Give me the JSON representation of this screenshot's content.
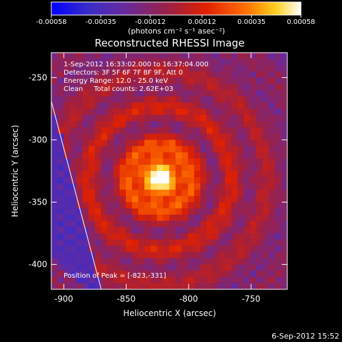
{
  "chart_data": {
    "type": "heatmap",
    "title": "Reconstructed RHESSI Image",
    "xlabel": "Heliocentric X (arcsec)",
    "ylabel": "Heliocentric Y (arcsec)",
    "xlim": [
      -910,
      -721
    ],
    "ylim": [
      -420,
      -230
    ],
    "xticks": [
      -900,
      -850,
      -800,
      -750
    ],
    "xtick_labels": [
      "-900",
      "-850",
      "-800",
      "-750"
    ],
    "yticks": [
      -250,
      -300,
      -350,
      -400
    ],
    "ytick_labels": [
      "-250",
      "-300",
      "-350",
      "-400"
    ],
    "colorbar": {
      "ticks": [
        -0.00058,
        -0.00035,
        -0.00012,
        0.00012,
        0.00035,
        0.00058
      ],
      "tick_labels": [
        "-0.00058",
        "-0.00035",
        "-0.00012",
        "0.00012",
        "0.00035",
        "0.00058"
      ],
      "range": [
        -0.00058,
        0.00058
      ],
      "unit_label": "(photons cm⁻² s⁻¹ asec⁻²)",
      "colors": [
        "#0000ff",
        "#3a2cc8",
        "#6a2a9a",
        "#a02040",
        "#e02000",
        "#ff7000",
        "#ffd020",
        "#ffffff"
      ]
    },
    "annotations": [
      "1-Sep-2012 16:33:02.000 to 16:37:04.000",
      "Detectors: 3F 5F 6F 7F 8F 9F, Att 0",
      "Energy Range: 12.0 - 25.0 keV",
      "Clean     Total counts: 2.62E+03"
    ],
    "peak_label": "Position of Peak = [-823,-331]",
    "peak": [
      -823,
      -331
    ],
    "limb": [
      [
        -910,
        -269
      ],
      [
        -870,
        -420
      ]
    ],
    "grid": "38x38"
  },
  "footer": {
    "timestamp": "6-Sep-2012 15:52"
  }
}
